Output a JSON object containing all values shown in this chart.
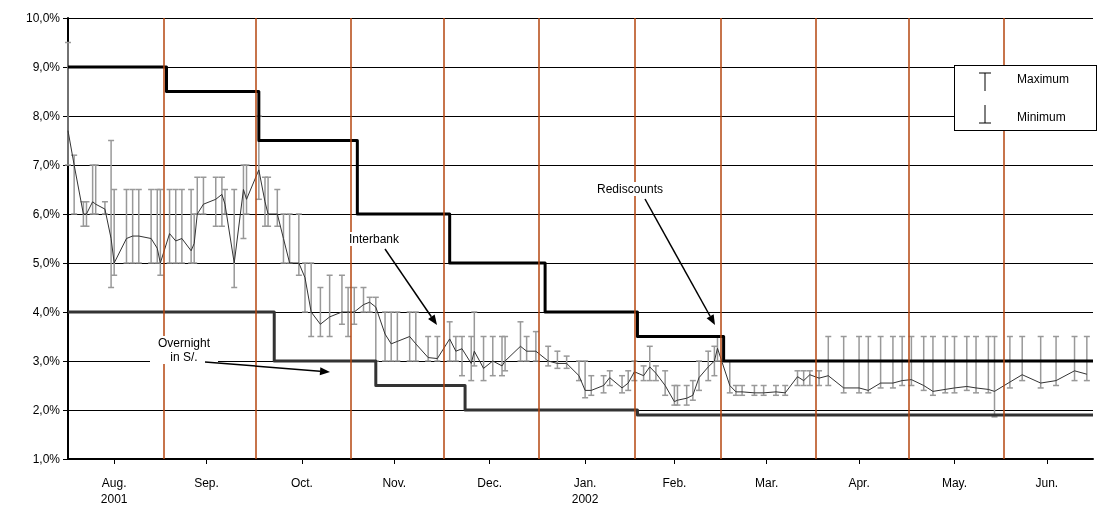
{
  "chart_data": {
    "type": "line",
    "xlim": [
      "2001-08-01",
      "2002-06-30"
    ],
    "xticks": [
      {
        "value": "2001-08-16",
        "label": "Aug.\n2001"
      },
      {
        "value": "2001-09-15",
        "label": "Sep."
      },
      {
        "value": "2001-10-16",
        "label": "Oct."
      },
      {
        "value": "2001-11-15",
        "label": "Nov."
      },
      {
        "value": "2001-12-16",
        "label": "Dec."
      },
      {
        "value": "2002-01-16",
        "label": "Jan.\n2002"
      },
      {
        "value": "2002-02-14",
        "label": "Feb."
      },
      {
        "value": "2002-03-16",
        "label": "Mar."
      },
      {
        "value": "2002-04-15",
        "label": "Apr."
      },
      {
        "value": "2002-05-16",
        "label": "May."
      },
      {
        "value": "2002-06-15",
        "label": "Jun."
      }
    ],
    "ylim": [
      1,
      10
    ],
    "yticks": [
      {
        "value": 1,
        "label": "1,0%"
      },
      {
        "value": 2,
        "label": "2,0%"
      },
      {
        "value": 3,
        "label": "3,0%"
      },
      {
        "value": 4,
        "label": "4,0%"
      },
      {
        "value": 5,
        "label": "5,0%"
      },
      {
        "value": 6,
        "label": "6,0%"
      },
      {
        "value": 7,
        "label": "7,0%"
      },
      {
        "value": 8,
        "label": "8,0%"
      },
      {
        "value": 9,
        "label": "9,0%"
      },
      {
        "value": 10,
        "label": "10,0%"
      }
    ],
    "grid": "y",
    "marker": "none",
    "series": [
      {
        "type": "line",
        "color": "#333333",
        "x": [
          "2001-08-01",
          "2001-08-03",
          "2001-08-06",
          "2001-08-07",
          "2001-08-09",
          "2001-08-10",
          "2001-08-13",
          "2001-08-15",
          "2001-08-16",
          "2001-08-20",
          "2001-08-22",
          "2001-08-24",
          "2001-08-28",
          "2001-08-30",
          "2001-08-31",
          "2001-09-03",
          "2001-09-05",
          "2001-09-07",
          "2001-09-10",
          "2001-09-11",
          "2001-09-12",
          "2001-09-14",
          "2001-09-18",
          "2001-09-20",
          "2001-09-21",
          "2001-09-24",
          "2001-09-27",
          "2001-09-28",
          "2001-10-02",
          "2001-10-04",
          "2001-10-05",
          "2001-10-08",
          "2001-10-10",
          "2001-10-12",
          "2001-10-15",
          "2001-10-17",
          "2001-10-19",
          "2001-10-22",
          "2001-10-25",
          "2001-10-29",
          "2001-10-31",
          "2001-11-02",
          "2001-11-05",
          "2001-11-07",
          "2001-11-09",
          "2001-11-12",
          "2001-11-14",
          "2001-11-16",
          "2001-11-20",
          "2001-11-22",
          "2001-11-26",
          "2001-11-29",
          "2001-12-03",
          "2001-12-05",
          "2001-12-07",
          "2001-12-10",
          "2001-12-11",
          "2001-12-14",
          "2001-12-17",
          "2001-12-20",
          "2001-12-21",
          "2001-12-26",
          "2001-12-28",
          "2001-12-31",
          "2002-01-04",
          "2002-01-07",
          "2002-01-10",
          "2002-01-14",
          "2002-01-16",
          "2002-01-18",
          "2002-01-22",
          "2002-01-24",
          "2002-01-28",
          "2002-01-30",
          "2002-02-01",
          "2002-02-04",
          "2002-02-06",
          "2002-02-08",
          "2002-02-11",
          "2002-02-14",
          "2002-02-15",
          "2002-02-18",
          "2002-02-20",
          "2002-02-22",
          "2002-02-25",
          "2002-02-27",
          "2002-02-28",
          "2002-03-04",
          "2002-03-06",
          "2002-03-08",
          "2002-03-12",
          "2002-03-15",
          "2002-03-19",
          "2002-03-22",
          "2002-03-26",
          "2002-03-28",
          "2002-03-30",
          "2002-04-02",
          "2002-04-05",
          "2002-04-10",
          "2002-04-15",
          "2002-04-18",
          "2002-04-22",
          "2002-04-26",
          "2002-04-29",
          "2002-05-02",
          "2002-05-06",
          "2002-05-09",
          "2002-05-13",
          "2002-05-16",
          "2002-05-20",
          "2002-05-23",
          "2002-05-27",
          "2002-05-29",
          "2002-06-03",
          "2002-06-07",
          "2002-06-13",
          "2002-06-18",
          "2002-06-24",
          "2002-06-28"
        ],
        "values": [
          7.7,
          7.0,
          6.0,
          6.0,
          6.25,
          6.2,
          6.1,
          5.5,
          5.0,
          5.5,
          5.55,
          5.55,
          5.5,
          5.3,
          5.0,
          5.6,
          5.45,
          5.5,
          5.25,
          5.4,
          6.0,
          6.2,
          6.3,
          6.4,
          6.2,
          5.0,
          6.5,
          6.3,
          6.9,
          6.25,
          6.0,
          6.0,
          5.5,
          5.0,
          5.0,
          4.7,
          4.0,
          3.75,
          3.9,
          4.0,
          4.0,
          4.0,
          4.15,
          4.2,
          4.1,
          3.55,
          3.35,
          3.4,
          3.5,
          3.35,
          3.07,
          3.05,
          3.45,
          3.2,
          3.25,
          2.95,
          3.2,
          2.85,
          3.0,
          2.9,
          3.0,
          3.3,
          3.2,
          3.2,
          3.0,
          2.95,
          2.95,
          2.7,
          2.4,
          2.4,
          2.5,
          2.66,
          2.45,
          2.55,
          2.78,
          2.7,
          2.88,
          2.75,
          2.5,
          2.17,
          2.2,
          2.24,
          2.3,
          2.66,
          2.88,
          3.0,
          3.26,
          2.5,
          2.37,
          2.37,
          2.35,
          2.35,
          2.37,
          2.35,
          2.68,
          2.6,
          2.72,
          2.65,
          2.7,
          2.45,
          2.45,
          2.4,
          2.55,
          2.55,
          2.6,
          2.62,
          2.5,
          2.38,
          2.42,
          2.45,
          2.48,
          2.45,
          2.42,
          2.38,
          2.57,
          2.72,
          2.55,
          2.6,
          2.8,
          2.73
        ],
        "errors": [
          [
            7.0,
            9.5
          ],
          [
            6.0,
            7.2
          ],
          [
            5.75,
            6.25
          ],
          [
            5.75,
            6.25
          ],
          [
            6.0,
            7.0
          ],
          [
            6.0,
            7.0
          ],
          [
            6.0,
            6.25
          ],
          [
            4.5,
            7.5
          ],
          [
            4.75,
            6.5
          ],
          [
            5.0,
            6.5
          ],
          [
            5.0,
            6.5
          ],
          [
            5.0,
            6.5
          ],
          [
            5.0,
            6.5
          ],
          [
            5.0,
            6.5
          ],
          [
            4.75,
            6.5
          ],
          [
            5.0,
            6.5
          ],
          [
            5.0,
            6.5
          ],
          [
            5.0,
            6.5
          ],
          [
            5.0,
            6.5
          ],
          [
            5.0,
            6.0
          ],
          [
            6.0,
            6.75
          ],
          [
            6.0,
            6.75
          ],
          [
            5.75,
            6.75
          ],
          [
            5.75,
            6.75
          ],
          [
            6.0,
            6.5
          ],
          [
            4.5,
            6.5
          ],
          [
            5.5,
            7.0
          ],
          [
            6.0,
            7.0
          ],
          [
            6.3,
            8.0
          ],
          [
            5.75,
            6.75
          ],
          [
            5.75,
            6.75
          ],
          [
            5.75,
            6.5
          ],
          [
            5.0,
            6.0
          ],
          [
            5.0,
            6.0
          ],
          [
            4.75,
            6.0
          ],
          [
            4.0,
            5.0
          ],
          [
            3.5,
            5.0
          ],
          [
            3.5,
            4.5
          ],
          [
            3.5,
            4.75
          ],
          [
            3.75,
            4.75
          ],
          [
            3.5,
            4.5
          ],
          [
            3.75,
            4.5
          ],
          [
            4.0,
            4.5
          ],
          [
            4.0,
            4.3
          ],
          [
            3.0,
            4.3
          ],
          [
            3.0,
            4.0
          ],
          [
            3.0,
            4.0
          ],
          [
            3.0,
            4.0
          ],
          [
            3.0,
            4.0
          ],
          [
            3.0,
            4.0
          ],
          [
            3.0,
            3.5
          ],
          [
            3.0,
            3.5
          ],
          [
            3.0,
            3.8
          ],
          [
            3.0,
            3.5
          ],
          [
            2.7,
            3.5
          ],
          [
            2.6,
            3.5
          ],
          [
            2.9,
            4.0
          ],
          [
            2.6,
            3.5
          ],
          [
            2.7,
            3.5
          ],
          [
            2.7,
            3.5
          ],
          [
            2.8,
            3.5
          ],
          [
            3.0,
            3.8
          ],
          [
            3.0,
            3.5
          ],
          [
            3.0,
            3.6
          ],
          [
            2.9,
            3.3
          ],
          [
            2.85,
            3.2
          ],
          [
            2.85,
            3.1
          ],
          [
            2.6,
            3.0
          ],
          [
            2.25,
            3.0
          ],
          [
            2.3,
            2.7
          ],
          [
            2.35,
            2.7
          ],
          [
            2.5,
            2.8
          ],
          [
            2.35,
            2.7
          ],
          [
            2.4,
            2.8
          ],
          [
            2.6,
            3.0
          ],
          [
            2.6,
            2.9
          ],
          [
            2.6,
            3.3
          ],
          [
            2.6,
            2.9
          ],
          [
            2.3,
            2.8
          ],
          [
            2.1,
            2.5
          ],
          [
            2.1,
            2.5
          ],
          [
            2.1,
            2.5
          ],
          [
            2.2,
            2.6
          ],
          [
            2.4,
            3.0
          ],
          [
            2.6,
            3.2
          ],
          [
            2.7,
            3.3
          ],
          [
            3.0,
            3.5
          ],
          [
            2.35,
            3.0
          ],
          [
            2.3,
            2.5
          ],
          [
            2.3,
            2.5
          ],
          [
            2.3,
            2.5
          ],
          [
            2.3,
            2.5
          ],
          [
            2.3,
            2.5
          ],
          [
            2.3,
            2.5
          ],
          [
            2.5,
            2.8
          ],
          [
            2.5,
            2.8
          ],
          [
            2.5,
            2.8
          ],
          [
            2.5,
            2.8
          ],
          [
            2.5,
            3.5
          ],
          [
            2.35,
            3.5
          ],
          [
            2.35,
            3.5
          ],
          [
            2.35,
            3.5
          ],
          [
            2.45,
            3.5
          ],
          [
            2.45,
            3.5
          ],
          [
            2.5,
            3.5
          ],
          [
            2.5,
            3.5
          ],
          [
            2.4,
            3.5
          ],
          [
            2.3,
            3.5
          ],
          [
            2.35,
            3.5
          ],
          [
            2.35,
            3.5
          ],
          [
            2.4,
            3.5
          ],
          [
            2.35,
            3.5
          ],
          [
            2.35,
            3.5
          ],
          [
            1.86,
            3.5
          ],
          [
            2.45,
            3.5
          ],
          [
            2.6,
            3.5
          ],
          [
            2.45,
            3.5
          ],
          [
            2.5,
            3.5
          ],
          [
            2.6,
            3.5
          ],
          [
            2.6,
            3.5
          ]
        ]
      },
      {
        "type": "step",
        "color": "#000000",
        "x": [
          "2001-08-01",
          "2001-09-02",
          "2001-10-02",
          "2001-11-03",
          "2001-12-03",
          "2002-01-03",
          "2002-02-02",
          "2002-03-02",
          "2002-06-30"
        ],
        "values": [
          9.0,
          8.5,
          7.5,
          6.0,
          5.0,
          4.0,
          3.5,
          3.0,
          3.0
        ]
      },
      {
        "type": "step",
        "color": "#333333",
        "x": [
          "2001-08-01",
          "2001-10-07",
          "2001-11-09",
          "2001-12-08",
          "2002-02-02",
          "2002-06-30"
        ],
        "values": [
          4.0,
          3.0,
          2.5,
          2.0,
          1.9,
          1.9
        ]
      }
    ],
    "ref_lines": [
      {
        "axis": "x",
        "value": "2001-09-01",
        "color": "#b5460f"
      },
      {
        "axis": "x",
        "value": "2001-10-01",
        "color": "#b5460f"
      },
      {
        "axis": "x",
        "value": "2001-11-01",
        "color": "#b5460f"
      },
      {
        "axis": "x",
        "value": "2001-12-01",
        "color": "#b5460f"
      },
      {
        "axis": "x",
        "value": "2002-01-01",
        "color": "#b5460f"
      },
      {
        "axis": "x",
        "value": "2002-02-01",
        "color": "#b5460f"
      },
      {
        "axis": "x",
        "value": "2002-03-01",
        "color": "#b5460f"
      },
      {
        "axis": "x",
        "value": "2002-04-01",
        "color": "#b5460f"
      },
      {
        "axis": "x",
        "value": "2002-05-01",
        "color": "#b5460f"
      },
      {
        "axis": "x",
        "value": "2002-06-01",
        "color": "#b5460f"
      }
    ],
    "annotations": [
      "Interbank",
      "Rediscounts",
      "Overnight in S/.",
      "Maximum",
      "Minimum"
    ]
  }
}
